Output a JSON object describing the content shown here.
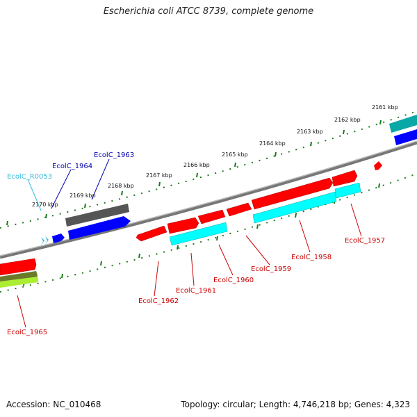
{
  "title": "Escherichia coli ATCC 8739, complete genome",
  "footer": {
    "accession": "Accession: NC_010468",
    "summary": "Topology: circular; Length: 4,746,218 bp; Genes: 4,323"
  },
  "ruler_labels": [
    "2161 kbp",
    "2162 kbp",
    "2163 kbp",
    "2164 kbp",
    "2165 kbp",
    "2166 kbp",
    "2167 kbp",
    "2168 kbp",
    "2169 kbp",
    "2170 kbp"
  ],
  "gene_labels": [
    "EcolC_R0053",
    "EcolC_1964",
    "EcolC_1963",
    "EcolC_1957",
    "EcolC_1958",
    "EcolC_1959",
    "EcolC_1960",
    "EcolC_1961",
    "EcolC_1962",
    "EcolC_1965"
  ],
  "colors": {
    "backbone": "#777777",
    "cds": "#ff0000",
    "gene": "#0000ff",
    "rna": "#00ffff",
    "gray_feature": "#555555",
    "tick": "#1a7a1a",
    "label_red": "#cc0000",
    "label_blue": "#0000aa",
    "label_cyan": "#33bbdd"
  }
}
